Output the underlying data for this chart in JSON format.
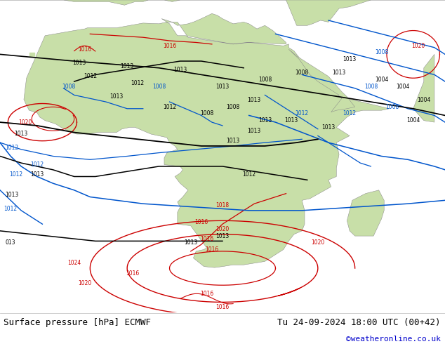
{
  "title_left": "Surface pressure [hPa] ECMWF",
  "title_right": "Tu 24-09-2024 18:00 UTC (00+42)",
  "credit": "©weatheronline.co.uk",
  "bg_color": "#ffffff",
  "land_color": "#c8dfa8",
  "sea_color": "#dcdcdc",
  "text_color": "#000000",
  "credit_color": "#0000cc",
  "figsize": [
    6.34,
    4.9
  ],
  "dpi": 100,
  "font_size_bottom": 9,
  "font_size_credit": 8,
  "red": "#cc0000",
  "blue": "#0055cc",
  "black": "#000000",
  "gray": "#888888",
  "xlim": [
    -22,
    62
  ],
  "ylim": [
    -48,
    44
  ]
}
